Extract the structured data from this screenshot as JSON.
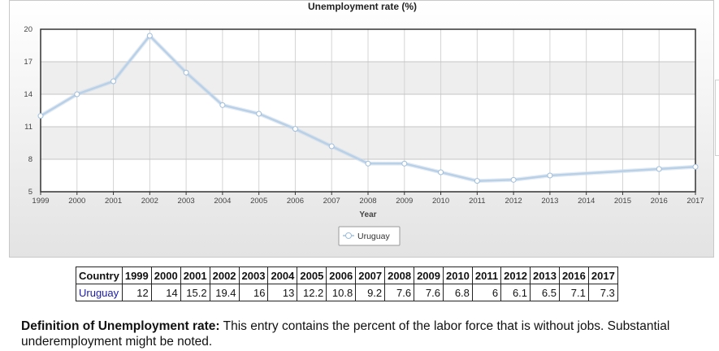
{
  "chart_data": {
    "type": "line",
    "title": "Unemployment rate (%)",
    "xlabel": "Year",
    "ylabel": "",
    "x": [
      1999,
      2000,
      2001,
      2002,
      2003,
      2004,
      2005,
      2006,
      2007,
      2008,
      2009,
      2010,
      2011,
      2012,
      2013,
      2016,
      2017
    ],
    "xticks": [
      1999,
      2000,
      2001,
      2002,
      2003,
      2004,
      2005,
      2006,
      2007,
      2008,
      2009,
      2010,
      2011,
      2012,
      2013,
      2014,
      2015,
      2016,
      2017
    ],
    "yticks": [
      5,
      8,
      11,
      14,
      17,
      20
    ],
    "xlim": [
      1999,
      2017
    ],
    "ylim": [
      5,
      20
    ],
    "grid": true,
    "legend_position": "bottom-center",
    "series": [
      {
        "name": "Uruguay",
        "values": [
          12,
          14,
          15.2,
          19.4,
          16,
          13,
          12.2,
          10.8,
          9.2,
          7.6,
          7.6,
          6.8,
          6,
          6.1,
          6.5,
          7.1,
          7.3
        ]
      }
    ],
    "colors": {
      "line": "#b8d0e8",
      "line_glow": "#cddbe8",
      "marker_fill": "#ffffff",
      "plot_band": "#eeeeee"
    }
  },
  "table": {
    "header_label": "Country",
    "years": [
      "1999",
      "2000",
      "2001",
      "2002",
      "2003",
      "2004",
      "2005",
      "2006",
      "2007",
      "2008",
      "2009",
      "2010",
      "2011",
      "2012",
      "2013",
      "2016",
      "2017"
    ],
    "rows": [
      {
        "country": "Uruguay",
        "values": [
          "12",
          "14",
          "15.2",
          "19.4",
          "16",
          "13",
          "12.2",
          "10.8",
          "9.2",
          "7.6",
          "7.6",
          "6.8",
          "6",
          "6.1",
          "6.5",
          "7.1",
          "7.3"
        ]
      }
    ]
  },
  "definition": {
    "label": "Definition of Unemployment rate:",
    "text": " This entry contains the percent of the labor force that is without jobs. Substantial underemployment might be noted."
  }
}
